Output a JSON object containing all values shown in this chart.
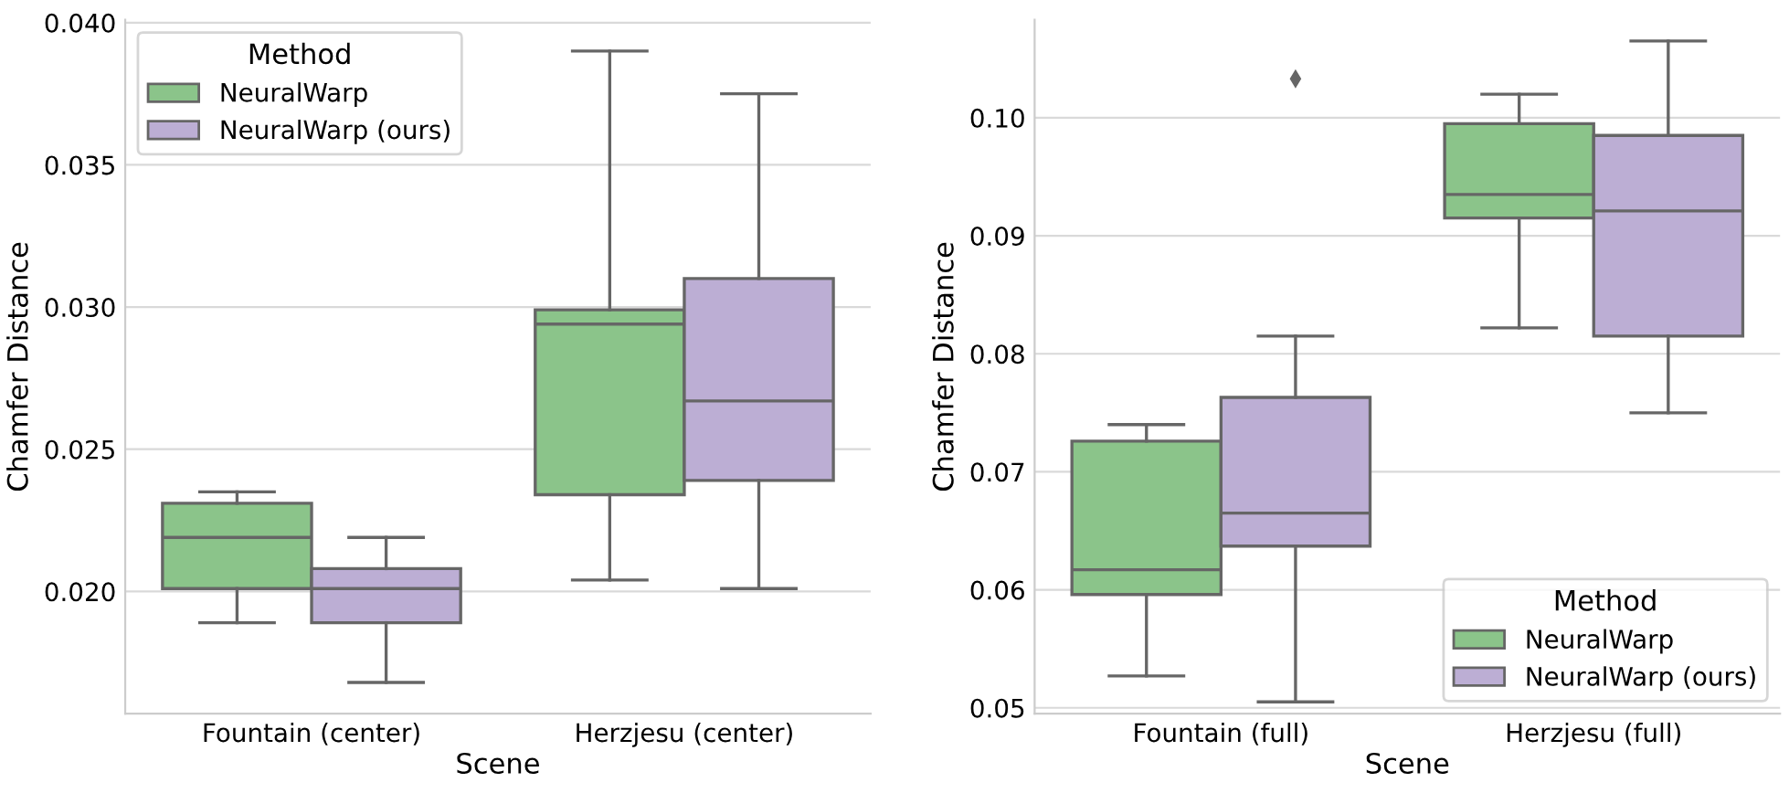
{
  "chart_data": [
    {
      "type": "box",
      "categories": [
        "Fountain (center)",
        "Herzjesu (center)"
      ],
      "xlabel": "Scene",
      "ylabel": "Chamfer Distance",
      "ylim": [
        0.0157,
        0.0401
      ],
      "yticks": [
        {
          "value": 0.02,
          "label": "0.020"
        },
        {
          "value": 0.025,
          "label": "0.025"
        },
        {
          "value": 0.03,
          "label": "0.030"
        },
        {
          "value": 0.035,
          "label": "0.035"
        },
        {
          "value": 0.04,
          "label": "0.040"
        }
      ],
      "grid": "y",
      "legend": "top left",
      "legend_title": "Method",
      "series": [
        {
          "name": "NeuralWarp",
          "color": "#8bc48a",
          "boxes": [
            {
              "low": 0.0189,
              "q1": 0.0201,
              "median": 0.0219,
              "q3": 0.0231,
              "high": 0.0235
            },
            {
              "low": 0.0204,
              "q1": 0.0234,
              "median": 0.0294,
              "q3": 0.0299,
              "high": 0.039
            }
          ]
        },
        {
          "name": "NeuralWarp (ours)",
          "color": "#bcaed4",
          "boxes": [
            {
              "low": 0.0168,
              "q1": 0.0189,
              "median": 0.0201,
              "q3": 0.0208,
              "high": 0.0219
            },
            {
              "low": 0.0201,
              "q1": 0.0239,
              "median": 0.0267,
              "q3": 0.031,
              "high": 0.0375
            }
          ]
        }
      ]
    },
    {
      "type": "box",
      "categories": [
        "Fountain (full)",
        "Herzjesu (full)"
      ],
      "xlabel": "Scene",
      "ylabel": "Chamfer Distance",
      "ylim": [
        0.0495,
        0.1083
      ],
      "yticks": [
        {
          "value": 0.05,
          "label": "0.05"
        },
        {
          "value": 0.06,
          "label": "0.06"
        },
        {
          "value": 0.07,
          "label": "0.07"
        },
        {
          "value": 0.08,
          "label": "0.08"
        },
        {
          "value": 0.09,
          "label": "0.09"
        },
        {
          "value": 0.1,
          "label": "0.10"
        }
      ],
      "grid": "y",
      "legend": "bottom right",
      "legend_title": "Method",
      "series": [
        {
          "name": "NeuralWarp",
          "color": "#8bc48a",
          "boxes": [
            {
              "low": 0.0527,
              "q1": 0.0596,
              "median": 0.0617,
              "q3": 0.0726,
              "high": 0.074
            },
            {
              "low": 0.0822,
              "q1": 0.0915,
              "median": 0.0935,
              "q3": 0.0995,
              "high": 0.102
            }
          ]
        },
        {
          "name": "NeuralWarp (ours)",
          "color": "#bcaed4",
          "boxes": [
            {
              "low": 0.0505,
              "q1": 0.0637,
              "median": 0.0665,
              "q3": 0.0763,
              "high": 0.0815,
              "outliers": [
                0.1033
              ]
            },
            {
              "low": 0.075,
              "q1": 0.0815,
              "median": 0.0921,
              "q3": 0.0985,
              "high": 0.1065
            }
          ]
        }
      ]
    }
  ]
}
